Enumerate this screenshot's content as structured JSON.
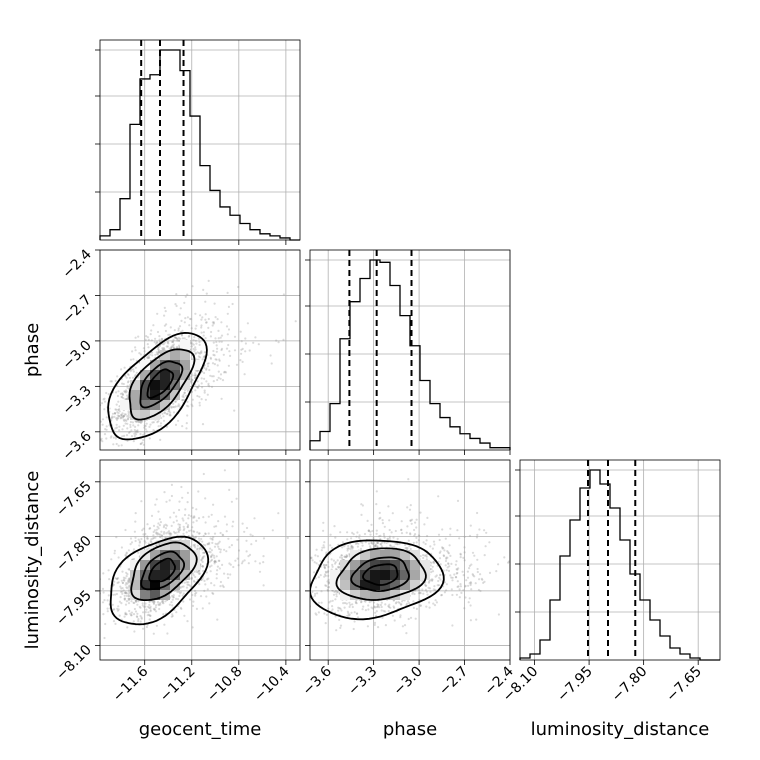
{
  "chart_data": {
    "type": "corner",
    "parameters": [
      "geocent_time",
      "phase",
      "luminosity_distance"
    ],
    "axis_labels": {
      "geocent_time": "geocent_time",
      "phase": "phase",
      "luminosity_distance": "luminosity_distance"
    },
    "ranges": {
      "geocent_time": [
        -11.98,
        -10.28
      ],
      "phase": [
        -3.72,
        -2.4
      ],
      "luminosity_distance": [
        -8.14,
        -7.59
      ]
    },
    "ticks": {
      "geocent_time": {
        "values": [
          -11.6,
          -11.2,
          -10.8,
          -10.4
        ],
        "labels": [
          "−11.6",
          "−11.2",
          "−10.8",
          "−10.4"
        ]
      },
      "phase": {
        "values": [
          -3.6,
          -3.3,
          -3.0,
          -2.7,
          -2.4
        ],
        "labels": [
          "−3.6",
          "−3.3",
          "−3.0",
          "−2.7",
          "−2.4"
        ]
      },
      "luminosity_distance": {
        "values": [
          -8.1,
          -7.95,
          -7.8,
          -7.65
        ],
        "labels": [
          "−8.10",
          "−7.95",
          "−7.80",
          "−7.65"
        ]
      }
    },
    "quantiles": {
      "geocent_time": [
        -11.63,
        -11.47,
        -11.27
      ],
      "phase": [
        -3.46,
        -3.28,
        -3.05
      ],
      "luminosity_distance": [
        -7.953,
        -7.898,
        -7.823
      ]
    },
    "histograms": {
      "geocent_time": {
        "edges_range": [
          -11.98,
          -10.28
        ],
        "counts": [
          2,
          5,
          20,
          56,
          78,
          80,
          92,
          92,
          82,
          60,
          36,
          24,
          16,
          12,
          8,
          5,
          3,
          2,
          1,
          0
        ]
      },
      "phase": {
        "edges_range": [
          -3.72,
          -2.4
        ],
        "counts": [
          4,
          8,
          20,
          48,
          64,
          74,
          82,
          81,
          71,
          58,
          45,
          30,
          20,
          14,
          10,
          7,
          5,
          3,
          1,
          1
        ]
      },
      "luminosity_distance": {
        "edges_range": [
          -8.14,
          -7.59
        ],
        "counts": [
          1,
          3,
          10,
          30,
          52,
          70,
          86,
          95,
          88,
          76,
          60,
          43,
          30,
          20,
          12,
          6,
          3,
          1,
          0,
          0
        ]
      }
    },
    "joint": [
      {
        "x": "geocent_time",
        "y": "phase",
        "mean": [
          -11.47,
          -3.28
        ],
        "sd": [
          0.2,
          0.17
        ],
        "rho": 0.6,
        "mode": [
          -11.52,
          -3.32
        ]
      },
      {
        "x": "geocent_time",
        "y": "luminosity_distance",
        "mean": [
          -11.45,
          -7.895
        ],
        "sd": [
          0.2,
          0.058
        ],
        "rho": 0.45,
        "mode": [
          -11.53,
          -7.935
        ]
      },
      {
        "x": "phase",
        "y": "luminosity_distance",
        "mean": [
          -3.25,
          -7.905
        ],
        "sd": [
          0.21,
          0.052
        ],
        "rho": 0.15,
        "mode": [
          -3.32,
          -7.925
        ]
      }
    ],
    "contour_levels": [
      "0.5-sigma",
      "1-sigma",
      "1.5-sigma",
      "2-sigma"
    ],
    "grid": true
  }
}
